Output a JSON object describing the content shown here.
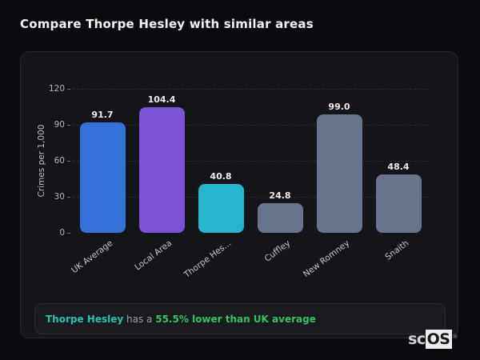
{
  "page": {
    "title": "Compare Thorpe Hesley with similar areas"
  },
  "chart_data": {
    "type": "bar",
    "title": "Compare Thorpe Hesley with similar areas",
    "categories": [
      "UK Average",
      "Local Area",
      "Thorpe Hesley",
      "Cuffley",
      "New Romney",
      "Snaith"
    ],
    "x_tick_labels": [
      "UK Average",
      "Local Area",
      "Thorpe Hes...",
      "Cuffley",
      "New Romney",
      "Snaith"
    ],
    "values": [
      91.7,
      104.4,
      40.8,
      24.8,
      99.0,
      48.4
    ],
    "value_labels": [
      "91.7",
      "104.4",
      "40.8",
      "24.8",
      "99.0",
      "48.4"
    ],
    "bar_colors": [
      "#3673d8",
      "#7b52d6",
      "#26b6cb",
      "#68748c",
      "#68748c",
      "#68748c"
    ],
    "xlabel": "",
    "ylabel": "Crimes per 1,000",
    "ylim": [
      0,
      120
    ],
    "yticks": [
      0,
      30,
      60,
      90,
      120
    ],
    "grid": "horizontal-dashed",
    "legend": false
  },
  "annotation": {
    "area_name": "Thorpe Hesley",
    "middle_text": " has a ",
    "highlight": "55.5% lower than UK average",
    "teal_color": "#2cc3ae",
    "green_color": "#33c45f"
  },
  "logo": {
    "prefix": "sc",
    "suffix": "OS",
    "registered": "®"
  }
}
